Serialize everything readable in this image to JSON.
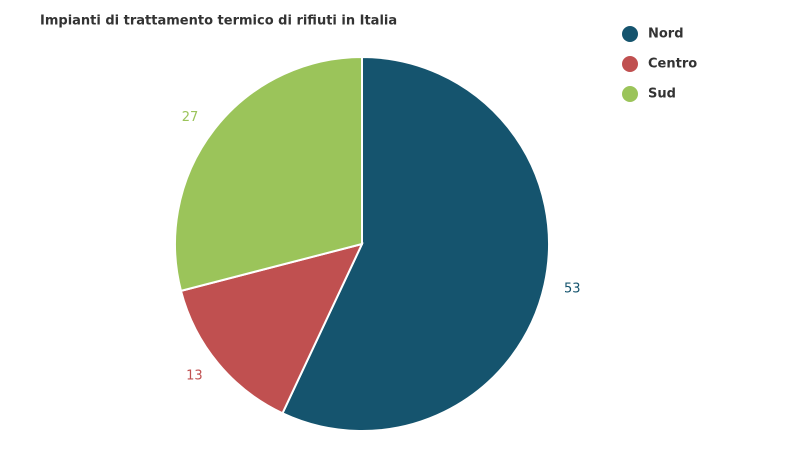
{
  "chart_data": {
    "type": "pie",
    "title": "Impianti di trattamento termico di rifiuti in Italia",
    "categories": [
      "Nord",
      "Centro",
      "Sud"
    ],
    "values": [
      53,
      13,
      27
    ],
    "colors": [
      "#15546e",
      "#c05050",
      "#9bc45a"
    ],
    "legend": "top-right"
  }
}
